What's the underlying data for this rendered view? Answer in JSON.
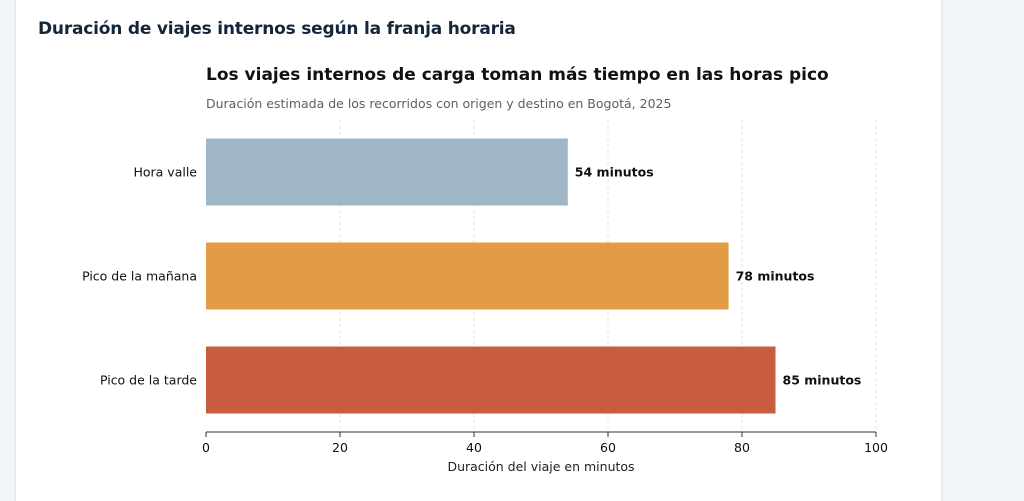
{
  "card": {
    "title": "Duración de viajes internos según la franja horaria"
  },
  "chart_data": {
    "type": "bar",
    "orientation": "horizontal",
    "title": "Los viajes internos de carga toman más tiempo en las horas pico",
    "subtitle": "Duración estimada de los recorridos con origen y destino en Bogotá, 2025",
    "categories": [
      "Hora valle",
      "Pico de la mañana",
      "Pico de la tarde"
    ],
    "values": [
      54,
      78,
      85
    ],
    "value_labels": [
      "54 minutos",
      "78 minutos",
      "85 minutos"
    ],
    "colors": [
      "#9eb6c5",
      "#e49b46",
      "#c85c3e"
    ],
    "xlabel": "Duración del viaje en minutos",
    "ylabel": "",
    "xlim": [
      0,
      100
    ],
    "xticks": [
      0,
      20,
      40,
      60,
      80,
      100
    ],
    "grid": "vertical dashed"
  }
}
